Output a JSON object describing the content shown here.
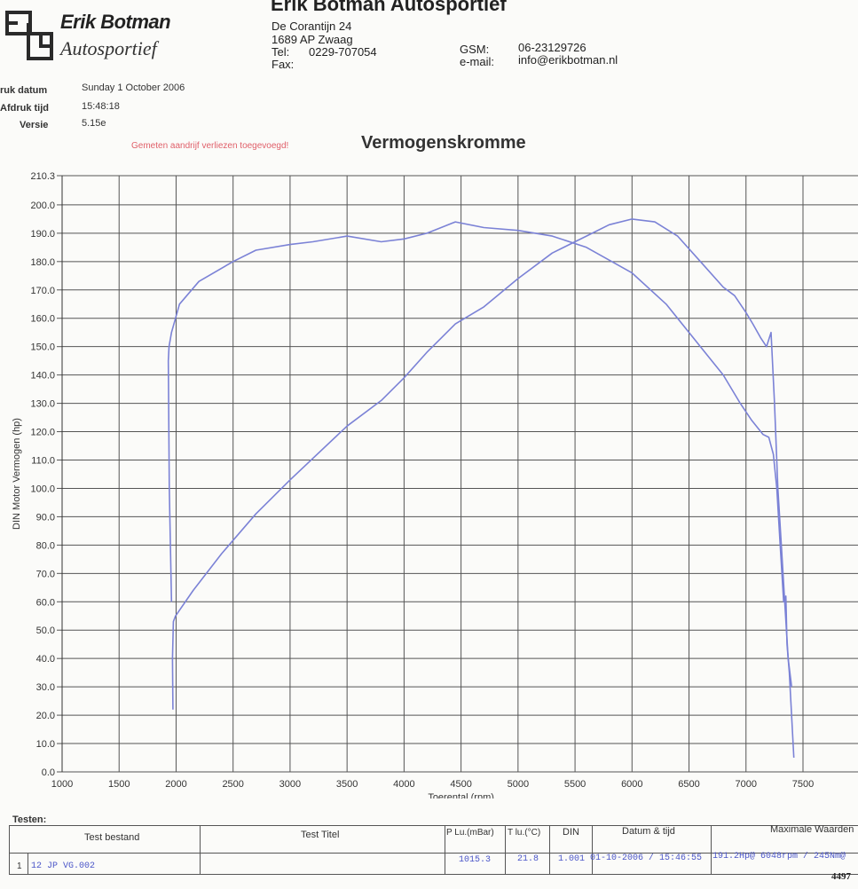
{
  "header": {
    "logo_name": "Erik Botman",
    "logo_sub": "Autosportief",
    "company": "Erik Botman Autosportief",
    "address": "De Corantijn 24",
    "city": "1689 AP  Zwaag",
    "tel_label": "Tel:",
    "tel": "0229-707054",
    "fax_label": "Fax:",
    "gsm_label": "GSM:",
    "gsm": "06-23129726",
    "email_label": "e-mail:",
    "email": "info@erikbotman.nl"
  },
  "meta": {
    "print_date_label": "ruk datum",
    "print_date": "Sunday 1 October 2006",
    "print_time_label": "Afdruk tijd",
    "print_time": "15:48:18",
    "version_label": "Versie",
    "version": "5.15e"
  },
  "note": "Gemeten aandrijf verliezen toegevoegd!",
  "chart_data": {
    "type": "line",
    "title": "Vermogenskromme",
    "xlabel": "Toerental (rpm)",
    "ylabel": "DIN Motor Vermogen (hp)",
    "xlim": [
      1000,
      7500
    ],
    "ylim": [
      0,
      210.3
    ],
    "x_ticks": [
      "1000",
      "1500",
      "2000",
      "2500",
      "3000",
      "3500",
      "4000",
      "4500",
      "5000",
      "5500",
      "6000",
      "6500",
      "7000",
      "7500"
    ],
    "y_ticks": [
      "0.0",
      "10.0",
      "20.0",
      "30.0",
      "40.0",
      "50.0",
      "60.0",
      "70.0",
      "80.0",
      "90.0",
      "100.0",
      "110.0",
      "120.0",
      "130.0",
      "140.0",
      "150.0",
      "160.0",
      "170.0",
      "180.0",
      "190.0",
      "200.0",
      "210.3"
    ],
    "grid": true,
    "color": "#7b82d6",
    "series": [
      {
        "x": [
          1960,
          1940,
          1932,
          1938,
          1960,
          2030,
          2200,
          2500,
          2700,
          3000,
          3200,
          3500,
          3800,
          4000,
          4200,
          4450,
          4700,
          5000,
          5300,
          5600,
          6000,
          6300,
          6600,
          6800,
          6950,
          7050,
          7150,
          7200,
          7240,
          7270,
          7300,
          7330,
          7350,
          7360,
          7380,
          7420
        ],
        "y": [
          60,
          100,
          145,
          150,
          155,
          165,
          173,
          180,
          184,
          186,
          187,
          189,
          187,
          188,
          190,
          194,
          192,
          191,
          189,
          185,
          176,
          165,
          150,
          140,
          130,
          124,
          119,
          118,
          112,
          100,
          80,
          60,
          62,
          45,
          35,
          5
        ]
      },
      {
        "x": [
          1972,
          1968,
          1976,
          1995,
          2150,
          2400,
          2700,
          3000,
          3500,
          3800,
          4000,
          4200,
          4450,
          4700,
          5000,
          5300,
          5600,
          5800,
          6000,
          6200,
          6400,
          6600,
          6800,
          6900,
          7000,
          7060,
          7130,
          7180,
          7220,
          7250,
          7280,
          7310,
          7340,
          7370,
          7400
        ],
        "y": [
          22,
          40,
          53,
          55,
          64,
          77,
          91,
          103,
          122,
          131,
          139,
          148,
          158,
          164,
          174,
          183,
          189,
          193,
          195,
          194,
          189,
          180,
          171,
          168,
          162,
          158,
          153,
          150,
          155,
          130,
          100,
          80,
          60,
          40,
          30
        ]
      }
    ]
  },
  "tests": {
    "section_label": "Testen:",
    "columns": [
      "Test bestand",
      "Test Titel",
      "P Lu.(mBar)",
      "T lu.(°C)",
      "DIN",
      "Datum & tijd",
      "Maximale Waarden"
    ],
    "rows": [
      {
        "num": "1",
        "file": "12 JP VG.002",
        "title": "",
        "pressure": "1015.3",
        "temp": "21.8",
        "din": "1.001",
        "datetime": "01-10-2006 / 15:46:55",
        "max": "191.2Hp@ 6048rpm / 245Nm@"
      }
    ]
  },
  "page_number": "4497"
}
